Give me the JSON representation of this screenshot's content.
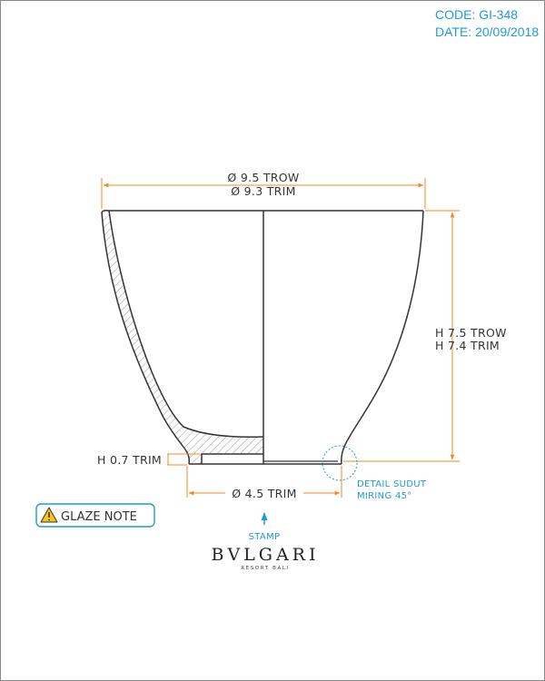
{
  "header": {
    "code": "CODE: GI-348",
    "date": "DATE: 20/09/2018"
  },
  "dimensions": {
    "diameter_trow": "Ø 9.5 TROW",
    "diameter_trim": "Ø 9.3 TRIM",
    "height_trow": "H 7.5 TROW",
    "height_trim": "H 7.4 TRIM",
    "foot_height": "H 0.7 TRIM",
    "foot_diameter": "Ø 4.5 TRIM"
  },
  "detail": {
    "line1": "DETAIL SUDUT",
    "line2": "MIRING 45°"
  },
  "glaze_note": "GLAZE NOTE",
  "stamp": "STAMP",
  "logo": {
    "name": "BVLGARI",
    "subtitle": "RESORT BALI"
  },
  "colors": {
    "dimension": "#f08a2a",
    "annotation": "#1e9ad6",
    "outline": "#333333",
    "warning": "#f5c518"
  }
}
